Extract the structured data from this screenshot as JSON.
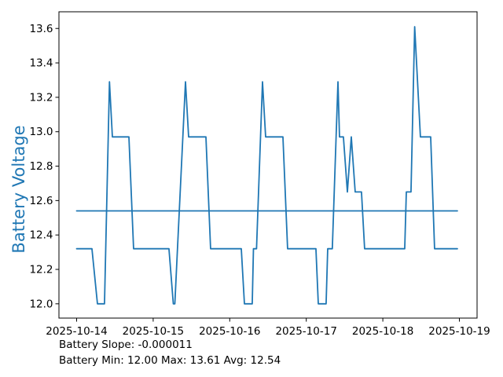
{
  "figure": {
    "background": "#ffffff",
    "footer": {
      "line1": "Battery Slope: -0.000011",
      "line2": "Battery Min: 12.00 Max: 13.61 Avg: 12.54"
    }
  },
  "chart_data": {
    "type": "line",
    "title": "",
    "xlabel": "",
    "ylabel": "Battery Voltage",
    "ylabel_color": "#1f77b4",
    "line_color": "#1f77b4",
    "avg_line_color": "#1f77b4",
    "axis_color": "#000000",
    "grid": false,
    "legend": "none",
    "x_units": "days since 2025-10-14",
    "x_tick_labels": [
      "2025-10-14",
      "2025-10-15",
      "2025-10-16",
      "2025-10-17",
      "2025-10-18",
      "2025-10-19"
    ],
    "x_tick_days": [
      0,
      1,
      2,
      3,
      4,
      5
    ],
    "y_tick_labels": [
      "12.0",
      "12.2",
      "12.4",
      "12.6",
      "12.8",
      "13.0",
      "13.2",
      "13.4",
      "13.6"
    ],
    "y_tick_values": [
      12.0,
      12.2,
      12.4,
      12.6,
      12.8,
      13.0,
      13.2,
      13.4,
      13.6
    ],
    "xlim_days": [
      -0.231,
      5.231
    ],
    "ylim": [
      11.917,
      13.697
    ],
    "stats": {
      "slope": -1.1e-05,
      "min": 12.0,
      "max": 13.61,
      "avg": 12.54
    },
    "series": [
      {
        "name": "Battery Voltage",
        "color": "#1f77b4",
        "points_day_voltage": [
          [
            0.0,
            12.32
          ],
          [
            0.2,
            12.32
          ],
          [
            0.272,
            12.0
          ],
          [
            0.364,
            12.0
          ],
          [
            0.429,
            13.29
          ],
          [
            0.467,
            12.97
          ],
          [
            0.683,
            12.97
          ],
          [
            0.744,
            12.32
          ],
          [
            1.206,
            12.32
          ],
          [
            1.263,
            12.0
          ],
          [
            1.283,
            12.0
          ],
          [
            1.422,
            13.29
          ],
          [
            1.463,
            12.97
          ],
          [
            1.689,
            12.97
          ],
          [
            1.75,
            12.32
          ],
          [
            2.151,
            12.32
          ],
          [
            2.192,
            12.0
          ],
          [
            2.294,
            12.0
          ],
          [
            2.31,
            12.32
          ],
          [
            2.35,
            12.32
          ],
          [
            2.428,
            13.29
          ],
          [
            2.469,
            12.97
          ],
          [
            2.695,
            12.97
          ],
          [
            2.756,
            12.32
          ],
          [
            3.126,
            12.32
          ],
          [
            3.157,
            12.0
          ],
          [
            3.259,
            12.0
          ],
          [
            3.28,
            12.32
          ],
          [
            3.34,
            12.32
          ],
          [
            3.414,
            13.29
          ],
          [
            3.434,
            12.97
          ],
          [
            3.485,
            12.97
          ],
          [
            3.537,
            12.65
          ],
          [
            3.588,
            12.97
          ],
          [
            3.639,
            12.65
          ],
          [
            3.721,
            12.65
          ],
          [
            3.762,
            12.32
          ],
          [
            4.286,
            12.32
          ],
          [
            4.307,
            12.65
          ],
          [
            4.368,
            12.65
          ],
          [
            4.416,
            13.61
          ],
          [
            4.491,
            12.97
          ],
          [
            4.625,
            12.97
          ],
          [
            4.676,
            12.32
          ],
          [
            4.974,
            12.32
          ]
        ]
      },
      {
        "name": "Average line (12.54)",
        "color": "#1f77b4",
        "points_day_voltage": [
          [
            0.0,
            12.54
          ],
          [
            4.974,
            12.54
          ]
        ]
      }
    ]
  }
}
